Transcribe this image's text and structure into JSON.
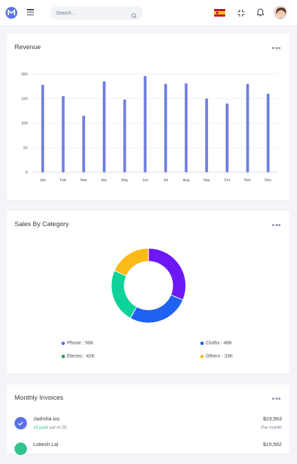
{
  "header": {
    "search_placeholder": "Search...",
    "language": "Spanish",
    "icons": [
      "logo-icon",
      "menu-icon",
      "search-icon",
      "flag-es-icon",
      "fullscreen-exit-icon",
      "bell-icon",
      "avatar"
    ]
  },
  "revenue": {
    "title": "Revenue",
    "chart_data": {
      "type": "bar",
      "categories": [
        "Jan",
        "Feb",
        "Mar",
        "Apr",
        "May",
        "Jun",
        "Jul",
        "Aug",
        "Sep",
        "Oct",
        "Nov",
        "Dec"
      ],
      "values": [
        178,
        155,
        115,
        185,
        148,
        196,
        180,
        181,
        150,
        140,
        180,
        160
      ],
      "yticks": [
        "0",
        "50",
        "100",
        "150",
        "200"
      ],
      "ylim": [
        0,
        200
      ],
      "color": "#6f7ee2",
      "grid": true
    }
  },
  "sales": {
    "title": "Sales By Category",
    "chart_data": {
      "type": "pie",
      "donut": true,
      "slices": [
        {
          "label": "Phone",
          "display": "Phone : 56K",
          "value": 56,
          "color": "#6d18f4"
        },
        {
          "label": "Cloths",
          "display": "Cloths : 48K",
          "value": 48,
          "color": "#1f61f0"
        },
        {
          "label": "Electro",
          "display": "Electro : 42K",
          "value": 42,
          "color": "#0dd398"
        },
        {
          "label": "Others",
          "display": "Others : 33K",
          "value": 33,
          "color": "#fbba16"
        }
      ],
      "legend_colors": [
        "#5b73e8",
        "#1f61f0",
        "#1aa34a",
        "#fbba16"
      ]
    }
  },
  "invoices": {
    "title": "Monthly Invoices",
    "rows": [
      {
        "name": "Jadrsha ios",
        "paid": "19 paid",
        "paid_rest": " out of 25",
        "amount": "$23,563",
        "period": "Per month"
      },
      {
        "name": "Lokesh Lal",
        "paid": "",
        "paid_rest": "",
        "amount": "$15,562",
        "period": ""
      }
    ]
  }
}
